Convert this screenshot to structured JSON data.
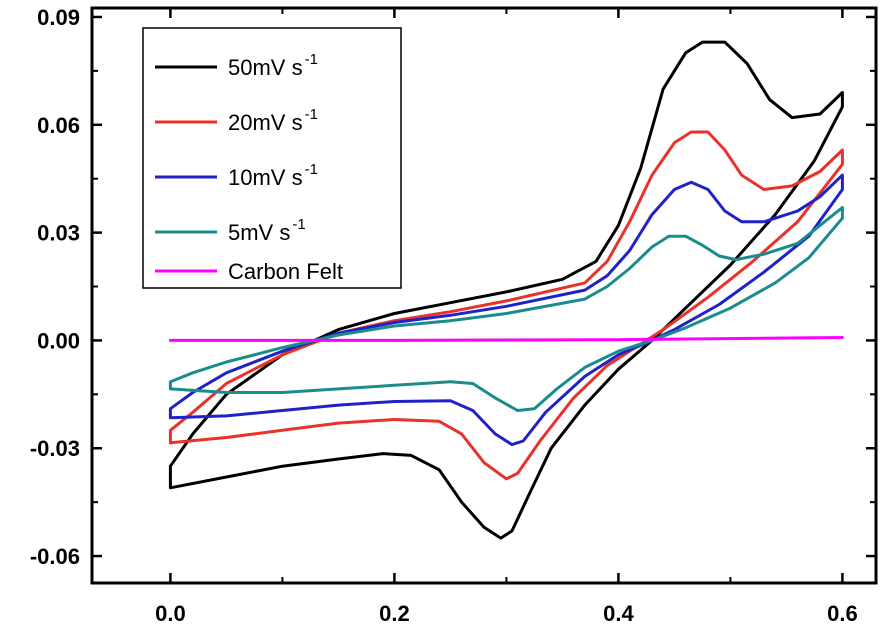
{
  "chart_data": {
    "type": "line",
    "title": "",
    "xlabel": "",
    "ylabel": "",
    "xlim": [
      -0.07,
      0.63
    ],
    "ylim": [
      -0.0675,
      0.0925
    ],
    "x_ticks": [
      0.0,
      0.2,
      0.4,
      0.6
    ],
    "x_tick_labels": [
      "0.0",
      "0.2",
      "0.4",
      "0.6"
    ],
    "y_ticks": [
      -0.06,
      -0.03,
      0.0,
      0.03,
      0.06,
      0.09
    ],
    "y_tick_labels": [
      "-0.06",
      "-0.03",
      "0.00",
      "0.03",
      "0.06",
      "0.09"
    ],
    "grid": false,
    "legend_position": "top-left",
    "series": [
      {
        "name": "50mV s",
        "name_sup": "-1",
        "color": "#000000",
        "points": [
          [
            0.0,
            -0.041
          ],
          [
            0.05,
            -0.038
          ],
          [
            0.1,
            -0.035
          ],
          [
            0.15,
            -0.033
          ],
          [
            0.19,
            -0.0315
          ],
          [
            0.215,
            -0.032
          ],
          [
            0.24,
            -0.036
          ],
          [
            0.26,
            -0.045
          ],
          [
            0.28,
            -0.052
          ],
          [
            0.295,
            -0.055
          ],
          [
            0.305,
            -0.053
          ],
          [
            0.32,
            -0.043
          ],
          [
            0.34,
            -0.03
          ],
          [
            0.37,
            -0.018
          ],
          [
            0.4,
            -0.008
          ],
          [
            0.43,
            0.0
          ],
          [
            0.46,
            0.009
          ],
          [
            0.5,
            0.021
          ],
          [
            0.54,
            0.035
          ],
          [
            0.575,
            0.05
          ],
          [
            0.6,
            0.065
          ],
          [
            0.6,
            0.069
          ],
          [
            0.58,
            0.063
          ],
          [
            0.555,
            0.062
          ],
          [
            0.535,
            0.067
          ],
          [
            0.515,
            0.077
          ],
          [
            0.495,
            0.083
          ],
          [
            0.475,
            0.083
          ],
          [
            0.46,
            0.08
          ],
          [
            0.44,
            0.07
          ],
          [
            0.42,
            0.048
          ],
          [
            0.4,
            0.032
          ],
          [
            0.38,
            0.022
          ],
          [
            0.35,
            0.017
          ],
          [
            0.3,
            0.0135
          ],
          [
            0.25,
            0.0105
          ],
          [
            0.2,
            0.0075
          ],
          [
            0.15,
            0.003
          ],
          [
            0.1,
            -0.004
          ],
          [
            0.05,
            -0.015
          ],
          [
            0.02,
            -0.026
          ],
          [
            0.0,
            -0.035
          ],
          [
            0.0,
            -0.041
          ]
        ]
      },
      {
        "name": "20mV s",
        "name_sup": "-1",
        "color": "#e8322a",
        "points": [
          [
            0.0,
            -0.0285
          ],
          [
            0.05,
            -0.027
          ],
          [
            0.1,
            -0.025
          ],
          [
            0.15,
            -0.023
          ],
          [
            0.2,
            -0.022
          ],
          [
            0.24,
            -0.0225
          ],
          [
            0.26,
            -0.026
          ],
          [
            0.28,
            -0.034
          ],
          [
            0.3,
            -0.0385
          ],
          [
            0.31,
            -0.037
          ],
          [
            0.33,
            -0.028
          ],
          [
            0.36,
            -0.016
          ],
          [
            0.39,
            -0.007
          ],
          [
            0.42,
            -0.001
          ],
          [
            0.44,
            0.003
          ],
          [
            0.48,
            0.012
          ],
          [
            0.52,
            0.022
          ],
          [
            0.56,
            0.033
          ],
          [
            0.6,
            0.049
          ],
          [
            0.6,
            0.053
          ],
          [
            0.58,
            0.047
          ],
          [
            0.555,
            0.043
          ],
          [
            0.53,
            0.042
          ],
          [
            0.51,
            0.046
          ],
          [
            0.495,
            0.053
          ],
          [
            0.48,
            0.058
          ],
          [
            0.465,
            0.058
          ],
          [
            0.45,
            0.055
          ],
          [
            0.43,
            0.046
          ],
          [
            0.41,
            0.033
          ],
          [
            0.39,
            0.022
          ],
          [
            0.37,
            0.016
          ],
          [
            0.3,
            0.011
          ],
          [
            0.25,
            0.008
          ],
          [
            0.2,
            0.0055
          ],
          [
            0.15,
            0.002
          ],
          [
            0.1,
            -0.004
          ],
          [
            0.05,
            -0.012
          ],
          [
            0.02,
            -0.02
          ],
          [
            0.0,
            -0.025
          ],
          [
            0.0,
            -0.0285
          ]
        ]
      },
      {
        "name": "10mV s",
        "name_sup": "-1",
        "color": "#1f22c8",
        "points": [
          [
            0.0,
            -0.0215
          ],
          [
            0.05,
            -0.021
          ],
          [
            0.1,
            -0.0195
          ],
          [
            0.15,
            -0.018
          ],
          [
            0.2,
            -0.017
          ],
          [
            0.25,
            -0.0168
          ],
          [
            0.27,
            -0.0195
          ],
          [
            0.29,
            -0.026
          ],
          [
            0.305,
            -0.029
          ],
          [
            0.315,
            -0.028
          ],
          [
            0.335,
            -0.02
          ],
          [
            0.37,
            -0.01
          ],
          [
            0.4,
            -0.004
          ],
          [
            0.43,
            0.0
          ],
          [
            0.45,
            0.003
          ],
          [
            0.49,
            0.01
          ],
          [
            0.53,
            0.019
          ],
          [
            0.57,
            0.029
          ],
          [
            0.6,
            0.042
          ],
          [
            0.6,
            0.046
          ],
          [
            0.58,
            0.04
          ],
          [
            0.56,
            0.036
          ],
          [
            0.53,
            0.033
          ],
          [
            0.51,
            0.033
          ],
          [
            0.495,
            0.036
          ],
          [
            0.48,
            0.042
          ],
          [
            0.465,
            0.044
          ],
          [
            0.45,
            0.042
          ],
          [
            0.43,
            0.035
          ],
          [
            0.41,
            0.025
          ],
          [
            0.39,
            0.018
          ],
          [
            0.37,
            0.014
          ],
          [
            0.3,
            0.0095
          ],
          [
            0.25,
            0.007
          ],
          [
            0.2,
            0.005
          ],
          [
            0.15,
            0.002
          ],
          [
            0.1,
            -0.003
          ],
          [
            0.05,
            -0.009
          ],
          [
            0.02,
            -0.0145
          ],
          [
            0.0,
            -0.019
          ],
          [
            0.0,
            -0.0215
          ]
        ]
      },
      {
        "name": "5mV s",
        "name_sup": "-1",
        "color": "#1a8c8c",
        "points": [
          [
            0.0,
            -0.0135
          ],
          [
            0.05,
            -0.0145
          ],
          [
            0.1,
            -0.0145
          ],
          [
            0.15,
            -0.0135
          ],
          [
            0.2,
            -0.0125
          ],
          [
            0.25,
            -0.0115
          ],
          [
            0.27,
            -0.012
          ],
          [
            0.29,
            -0.016
          ],
          [
            0.31,
            -0.0195
          ],
          [
            0.325,
            -0.019
          ],
          [
            0.345,
            -0.0135
          ],
          [
            0.37,
            -0.0075
          ],
          [
            0.4,
            -0.003
          ],
          [
            0.43,
            0.0
          ],
          [
            0.46,
            0.0035
          ],
          [
            0.5,
            0.009
          ],
          [
            0.54,
            0.016
          ],
          [
            0.57,
            0.023
          ],
          [
            0.6,
            0.034
          ],
          [
            0.6,
            0.037
          ],
          [
            0.58,
            0.032
          ],
          [
            0.56,
            0.027
          ],
          [
            0.53,
            0.024
          ],
          [
            0.505,
            0.0225
          ],
          [
            0.49,
            0.0235
          ],
          [
            0.475,
            0.0265
          ],
          [
            0.46,
            0.029
          ],
          [
            0.445,
            0.029
          ],
          [
            0.43,
            0.026
          ],
          [
            0.41,
            0.02
          ],
          [
            0.39,
            0.015
          ],
          [
            0.37,
            0.0115
          ],
          [
            0.3,
            0.0075
          ],
          [
            0.25,
            0.0055
          ],
          [
            0.2,
            0.004
          ],
          [
            0.15,
            0.0015
          ],
          [
            0.1,
            -0.002
          ],
          [
            0.05,
            -0.006
          ],
          [
            0.02,
            -0.009
          ],
          [
            0.0,
            -0.0115
          ],
          [
            0.0,
            -0.0135
          ]
        ]
      },
      {
        "name": "Carbon Felt",
        "name_sup": "",
        "color": "#ff00ff",
        "points": [
          [
            0.0,
            0.0
          ],
          [
            0.2,
            0.0
          ],
          [
            0.4,
            0.0002
          ],
          [
            0.6,
            0.0008
          ]
        ]
      }
    ]
  }
}
